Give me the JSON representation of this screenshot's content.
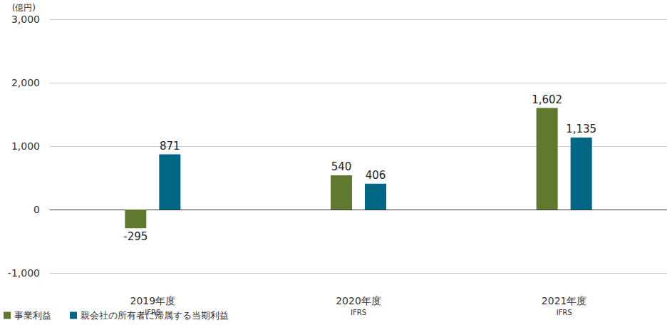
{
  "chart_data": {
    "type": "bar",
    "y_label": "(億円)",
    "categories": [
      "2019年度\nIFRS",
      "2020年度\nIFRS",
      "2021年度\nIFRS"
    ],
    "series": [
      {
        "name": "事業利益",
        "color": "#5f7a2e",
        "values": [
          -295,
          540,
          1602
        ],
        "value_labels": [
          "-295",
          "540",
          "1,602"
        ]
      },
      {
        "name": "親会社の所有者に帰属する当期利益",
        "color": "#006686",
        "values": [
          871,
          406,
          1135
        ],
        "value_labels": [
          "871",
          "406",
          "1,135"
        ]
      }
    ],
    "ylim": [
      -1000,
      3000
    ],
    "yticks": [
      {
        "value": -1000,
        "label": "-1,000"
      },
      0,
      {
        "value": 1000,
        "label": "1,000"
      },
      {
        "value": 2000,
        "label": "2,000"
      },
      {
        "value": 3000,
        "label": "3,000"
      }
    ],
    "grid": true,
    "legend": "bottom-left",
    "data_labels": true
  }
}
